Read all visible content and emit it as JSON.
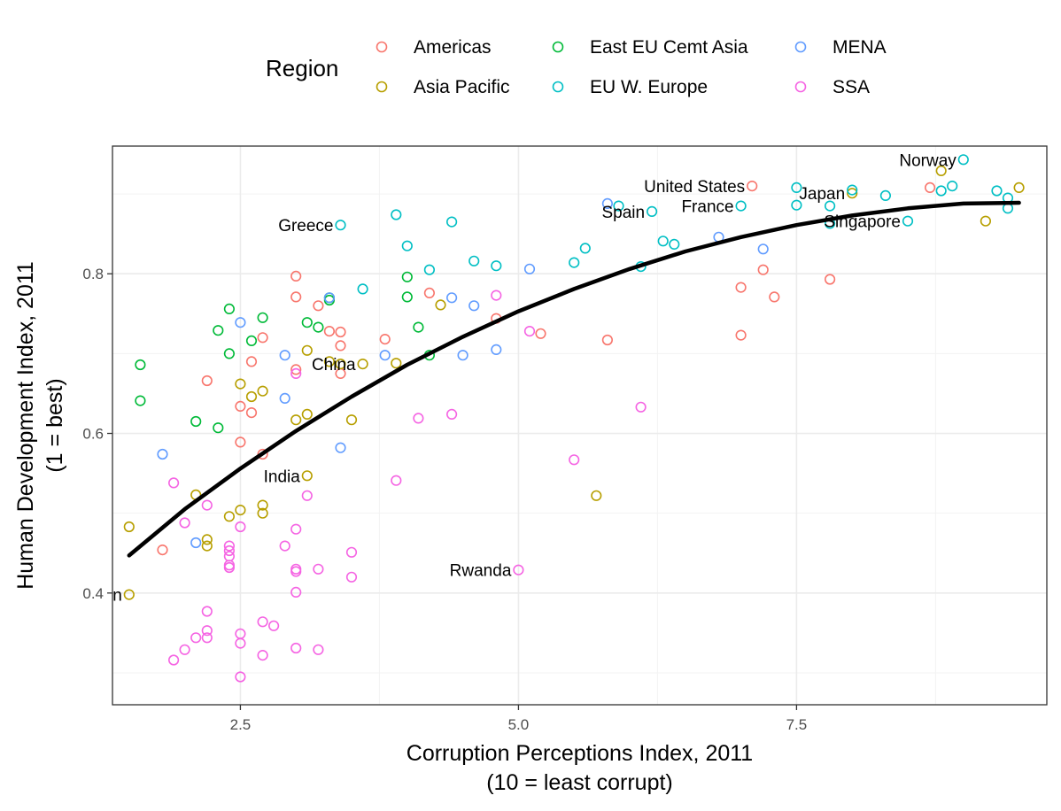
{
  "chart_data": {
    "type": "scatter",
    "xlabel": [
      "Corruption Perceptions Index, 2011",
      "(10 = least corrupt)"
    ],
    "ylabel": [
      "Human Development Index, 2011",
      "(1 = best)"
    ],
    "xlim": [
      1.35,
      9.75
    ],
    "ylim": [
      0.26,
      0.96
    ],
    "xticks": [
      2.5,
      5.0,
      7.5
    ],
    "xtick_labels": [
      "2.5",
      "5.0",
      "7.5"
    ],
    "yticks": [
      0.4,
      0.6,
      0.8
    ],
    "ytick_labels": [
      "0.4",
      "0.6",
      "0.8"
    ],
    "grid": true,
    "legend": {
      "title": "Region",
      "position": "top",
      "entries": [
        {
          "name": "Americas",
          "color": "#F8766D"
        },
        {
          "name": "Asia Pacific",
          "color": "#B79F00"
        },
        {
          "name": "East EU Cemt Asia",
          "color": "#00BA38"
        },
        {
          "name": "EU W. Europe",
          "color": "#00BFC4"
        },
        {
          "name": "MENA",
          "color": "#619CFF"
        },
        {
          "name": "SSA",
          "color": "#F564E3"
        }
      ]
    },
    "trend_line": {
      "color": "#000000",
      "points": [
        [
          1.5,
          0.447
        ],
        [
          2.0,
          0.505
        ],
        [
          2.5,
          0.556
        ],
        [
          3.0,
          0.603
        ],
        [
          3.5,
          0.646
        ],
        [
          4.0,
          0.686
        ],
        [
          4.5,
          0.721
        ],
        [
          5.0,
          0.753
        ],
        [
          5.5,
          0.781
        ],
        [
          6.0,
          0.806
        ],
        [
          6.5,
          0.828
        ],
        [
          7.0,
          0.846
        ],
        [
          7.5,
          0.861
        ],
        [
          8.0,
          0.873
        ],
        [
          8.5,
          0.882
        ],
        [
          9.0,
          0.888
        ],
        [
          9.5,
          0.889
        ]
      ]
    },
    "series": [
      {
        "name": "Americas",
        "points": [
          [
            1.8,
            0.454
          ],
          [
            2.2,
            0.666
          ],
          [
            2.5,
            0.589
          ],
          [
            2.5,
            0.634
          ],
          [
            2.6,
            0.69
          ],
          [
            2.6,
            0.626
          ],
          [
            2.7,
            0.574
          ],
          [
            2.7,
            0.72
          ],
          [
            3.0,
            0.797
          ],
          [
            3.0,
            0.771
          ],
          [
            3.0,
            0.68
          ],
          [
            3.2,
            0.76
          ],
          [
            3.3,
            0.728
          ],
          [
            3.4,
            0.727
          ],
          [
            3.4,
            0.71
          ],
          [
            3.4,
            0.675
          ],
          [
            3.8,
            0.718
          ],
          [
            4.2,
            0.776
          ],
          [
            4.8,
            0.744
          ],
          [
            5.2,
            0.725
          ],
          [
            5.8,
            0.717
          ],
          [
            7.0,
            0.783
          ],
          [
            7.0,
            0.723
          ],
          [
            7.1,
            0.91
          ],
          [
            7.2,
            0.805
          ],
          [
            7.3,
            0.771
          ],
          [
            7.8,
            0.793
          ],
          [
            8.7,
            0.908
          ]
        ]
      },
      {
        "name": "Asia Pacific",
        "points": [
          [
            1.5,
            0.483
          ],
          [
            1.5,
            0.398
          ],
          [
            2.1,
            0.523
          ],
          [
            2.2,
            0.467
          ],
          [
            2.2,
            0.459
          ],
          [
            2.4,
            0.496
          ],
          [
            2.5,
            0.504
          ],
          [
            2.5,
            0.662
          ],
          [
            2.6,
            0.646
          ],
          [
            2.7,
            0.653
          ],
          [
            2.7,
            0.51
          ],
          [
            2.7,
            0.5
          ],
          [
            3.0,
            0.617
          ],
          [
            3.1,
            0.547
          ],
          [
            3.1,
            0.624
          ],
          [
            3.1,
            0.704
          ],
          [
            3.3,
            0.69
          ],
          [
            3.4,
            0.687
          ],
          [
            3.5,
            0.617
          ],
          [
            3.6,
            0.687
          ],
          [
            3.9,
            0.688
          ],
          [
            4.3,
            0.761
          ],
          [
            5.7,
            0.522
          ],
          [
            8.0,
            0.901
          ],
          [
            8.8,
            0.929
          ],
          [
            9.2,
            0.866
          ],
          [
            9.5,
            0.908
          ]
        ]
      },
      {
        "name": "East EU Cemt Asia",
        "points": [
          [
            1.6,
            0.686
          ],
          [
            1.6,
            0.641
          ],
          [
            2.1,
            0.615
          ],
          [
            2.3,
            0.729
          ],
          [
            2.3,
            0.607
          ],
          [
            2.4,
            0.756
          ],
          [
            2.4,
            0.7
          ],
          [
            2.6,
            0.716
          ],
          [
            2.7,
            0.745
          ],
          [
            3.1,
            0.739
          ],
          [
            3.2,
            0.733
          ],
          [
            3.3,
            0.767
          ],
          [
            3.3,
            0.77
          ],
          [
            4.0,
            0.796
          ],
          [
            4.0,
            0.771
          ],
          [
            4.1,
            0.733
          ],
          [
            4.2,
            0.698
          ]
        ]
      },
      {
        "name": "EU W. Europe",
        "points": [
          [
            3.4,
            0.861
          ],
          [
            3.6,
            0.781
          ],
          [
            3.9,
            0.874
          ],
          [
            4.0,
            0.835
          ],
          [
            4.2,
            0.805
          ],
          [
            4.4,
            0.865
          ],
          [
            4.6,
            0.816
          ],
          [
            4.8,
            0.81
          ],
          [
            5.5,
            0.814
          ],
          [
            5.6,
            0.832
          ],
          [
            5.9,
            0.885
          ],
          [
            6.1,
            0.809
          ],
          [
            6.2,
            0.878
          ],
          [
            6.3,
            0.841
          ],
          [
            6.4,
            0.837
          ],
          [
            7.0,
            0.885
          ],
          [
            7.5,
            0.908
          ],
          [
            7.5,
            0.886
          ],
          [
            7.8,
            0.885
          ],
          [
            7.8,
            0.863
          ],
          [
            8.0,
            0.905
          ],
          [
            8.3,
            0.898
          ],
          [
            8.5,
            0.866
          ],
          [
            8.8,
            0.904
          ],
          [
            8.9,
            0.91
          ],
          [
            9.0,
            0.943
          ],
          [
            9.3,
            0.904
          ],
          [
            9.4,
            0.895
          ],
          [
            9.4,
            0.882
          ]
        ]
      },
      {
        "name": "MENA",
        "points": [
          [
            1.8,
            0.574
          ],
          [
            2.1,
            0.463
          ],
          [
            2.5,
            0.739
          ],
          [
            2.9,
            0.698
          ],
          [
            2.9,
            0.644
          ],
          [
            3.3,
            0.77
          ],
          [
            3.4,
            0.582
          ],
          [
            3.8,
            0.698
          ],
          [
            4.4,
            0.77
          ],
          [
            4.5,
            0.698
          ],
          [
            4.6,
            0.76
          ],
          [
            4.8,
            0.705
          ],
          [
            5.1,
            0.806
          ],
          [
            5.8,
            0.888
          ],
          [
            6.8,
            0.846
          ],
          [
            7.2,
            0.831
          ]
        ]
      },
      {
        "name": "SSA",
        "points": [
          [
            1.9,
            0.538
          ],
          [
            1.9,
            0.316
          ],
          [
            2.0,
            0.488
          ],
          [
            2.0,
            0.329
          ],
          [
            2.1,
            0.344
          ],
          [
            2.2,
            0.51
          ],
          [
            2.2,
            0.377
          ],
          [
            2.2,
            0.353
          ],
          [
            2.2,
            0.344
          ],
          [
            2.4,
            0.459
          ],
          [
            2.4,
            0.453
          ],
          [
            2.4,
            0.446
          ],
          [
            2.4,
            0.435
          ],
          [
            2.4,
            0.432
          ],
          [
            2.5,
            0.483
          ],
          [
            2.5,
            0.349
          ],
          [
            2.5,
            0.337
          ],
          [
            2.5,
            0.295
          ],
          [
            2.7,
            0.364
          ],
          [
            2.7,
            0.322
          ],
          [
            2.8,
            0.359
          ],
          [
            2.9,
            0.459
          ],
          [
            3.0,
            0.48
          ],
          [
            3.0,
            0.43
          ],
          [
            3.0,
            0.427
          ],
          [
            3.0,
            0.401
          ],
          [
            3.0,
            0.331
          ],
          [
            3.0,
            0.675
          ],
          [
            3.1,
            0.522
          ],
          [
            3.2,
            0.43
          ],
          [
            3.2,
            0.329
          ],
          [
            3.5,
            0.451
          ],
          [
            3.5,
            0.42
          ],
          [
            3.9,
            0.541
          ],
          [
            4.1,
            0.619
          ],
          [
            4.4,
            0.624
          ],
          [
            4.8,
            0.773
          ],
          [
            5.0,
            0.429
          ],
          [
            5.1,
            0.728
          ],
          [
            5.5,
            0.567
          ],
          [
            6.1,
            0.633
          ]
        ]
      }
    ],
    "annotations": [
      {
        "text": "Norway",
        "x": 9.0,
        "y": 0.943
      },
      {
        "text": "United States",
        "x": 7.1,
        "y": 0.91
      },
      {
        "text": "Japan",
        "x": 8.0,
        "y": 0.901
      },
      {
        "text": "France",
        "x": 7.0,
        "y": 0.885
      },
      {
        "text": "Spain",
        "x": 6.2,
        "y": 0.878
      },
      {
        "text": "Greece",
        "x": 3.4,
        "y": 0.861
      },
      {
        "text": "Singapore",
        "x": 8.5,
        "y": 0.866
      },
      {
        "text": "China",
        "x": 3.6,
        "y": 0.687
      },
      {
        "text": "India",
        "x": 3.1,
        "y": 0.547
      },
      {
        "text": "Rwanda",
        "x": 5.0,
        "y": 0.429
      },
      {
        "text": "tan",
        "x": 1.5,
        "y": 0.398
      }
    ]
  }
}
